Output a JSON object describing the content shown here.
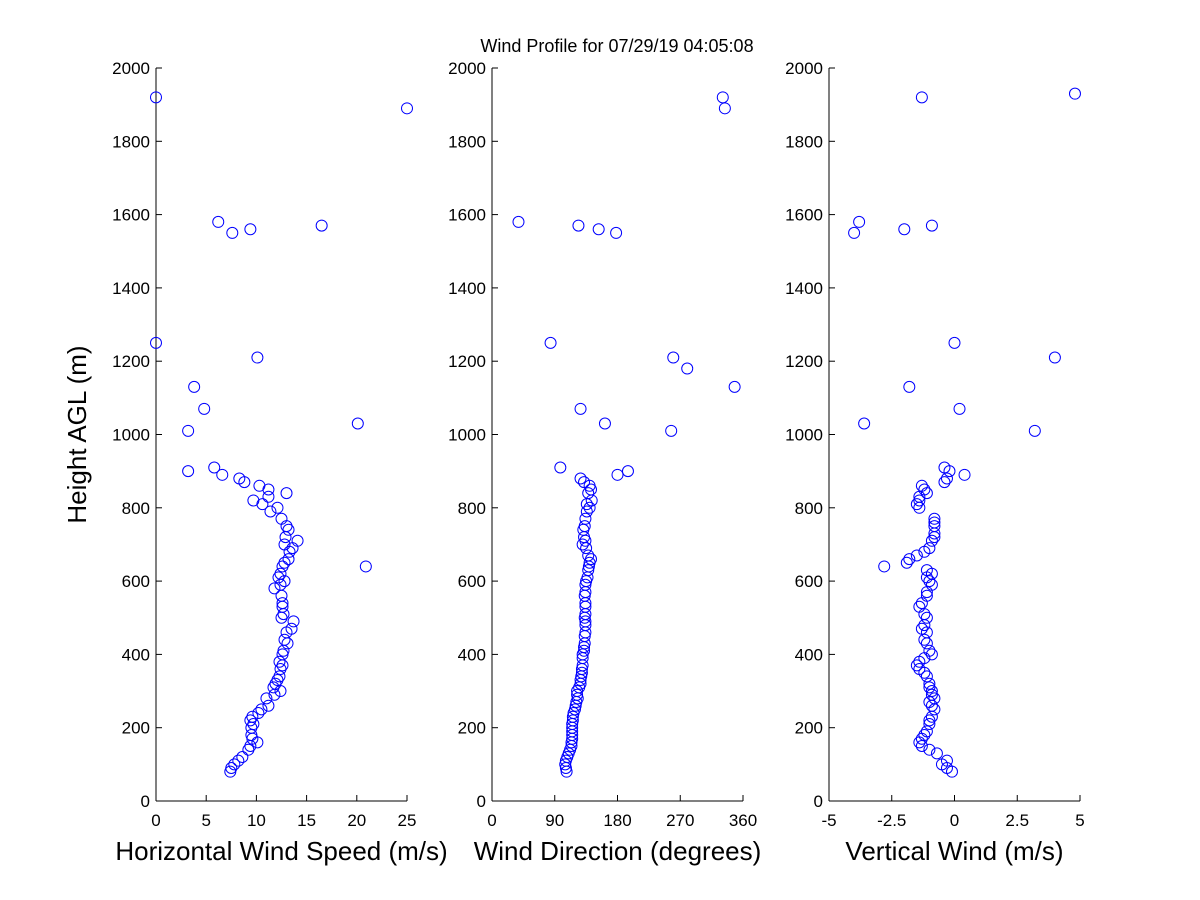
{
  "title": "Wind Profile for  07/29/19 04:05:08",
  "colors": {
    "marker": "#0000ff",
    "axis": "#000000",
    "background": "#ffffff"
  },
  "chart_data": [
    {
      "type": "scatter",
      "xlabel": "Horizontal Wind Speed (m/s)",
      "ylabel": "Height AGL (m)",
      "xlim": [
        0,
        25
      ],
      "ylim": [
        0,
        2000
      ],
      "xticks": [
        0,
        5,
        10,
        15,
        20,
        25
      ],
      "xtick_labels": [
        "0",
        "5",
        "10",
        "15",
        "20",
        "25"
      ],
      "yticks": [
        0,
        200,
        400,
        600,
        800,
        1000,
        1200,
        1400,
        1600,
        1800,
        2000
      ],
      "ytick_labels": [
        "0",
        "200",
        "400",
        "600",
        "800",
        "1000",
        "1200",
        "1400",
        "1600",
        "1800",
        "2000"
      ],
      "points": [
        [
          0,
          1920
        ],
        [
          25,
          1890
        ],
        [
          6.2,
          1580
        ],
        [
          7.6,
          1550
        ],
        [
          9.4,
          1560
        ],
        [
          16.5,
          1570
        ],
        [
          0,
          1250
        ],
        [
          10.1,
          1210
        ],
        [
          3.8,
          1130
        ],
        [
          4.8,
          1070
        ],
        [
          3.2,
          1010
        ],
        [
          20.1,
          1030
        ],
        [
          3.2,
          900
        ],
        [
          5.8,
          910
        ],
        [
          6.6,
          890
        ],
        [
          8.3,
          880
        ],
        [
          8.8,
          870
        ],
        [
          10.3,
          860
        ],
        [
          11.2,
          850
        ],
        [
          13,
          840
        ],
        [
          11.2,
          830
        ],
        [
          9.7,
          820
        ],
        [
          10.6,
          810
        ],
        [
          12.1,
          800
        ],
        [
          11.4,
          790
        ],
        [
          12.5,
          770
        ],
        [
          13,
          750
        ],
        [
          13.2,
          740
        ],
        [
          12.9,
          720
        ],
        [
          14.1,
          710
        ],
        [
          12.8,
          700
        ],
        [
          13.6,
          690
        ],
        [
          13.3,
          680
        ],
        [
          13.2,
          660
        ],
        [
          12.8,
          650
        ],
        [
          12.6,
          640
        ],
        [
          12.4,
          620
        ],
        [
          12.2,
          610
        ],
        [
          12.8,
          600
        ],
        [
          12.4,
          590
        ],
        [
          11.8,
          580
        ],
        [
          12.5,
          560
        ],
        [
          12.6,
          540
        ],
        [
          12.6,
          530
        ],
        [
          12.7,
          510
        ],
        [
          12.5,
          500
        ],
        [
          13.7,
          490
        ],
        [
          13.5,
          470
        ],
        [
          13,
          460
        ],
        [
          12.8,
          440
        ],
        [
          13.1,
          430
        ],
        [
          12.7,
          410
        ],
        [
          12.6,
          400
        ],
        [
          12.3,
          380
        ],
        [
          12.6,
          370
        ],
        [
          12.4,
          360
        ],
        [
          12.3,
          340
        ],
        [
          12.1,
          330
        ],
        [
          11.9,
          320
        ],
        [
          11.7,
          310
        ],
        [
          12.4,
          300
        ],
        [
          11.8,
          290
        ],
        [
          11,
          280
        ],
        [
          11.2,
          260
        ],
        [
          10.5,
          250
        ],
        [
          10.2,
          240
        ],
        [
          9.6,
          230
        ],
        [
          9.4,
          220
        ],
        [
          9.7,
          210
        ],
        [
          9.5,
          200
        ],
        [
          9.5,
          180
        ],
        [
          9.6,
          170
        ],
        [
          10.1,
          160
        ],
        [
          9.4,
          150
        ],
        [
          9.2,
          140
        ],
        [
          8.6,
          120
        ],
        [
          8.2,
          110
        ],
        [
          7.8,
          100
        ],
        [
          7.5,
          90
        ],
        [
          7.4,
          80
        ],
        [
          20.9,
          640
        ]
      ]
    },
    {
      "type": "scatter",
      "xlabel": "Wind Direction (degrees)",
      "xlim": [
        0,
        360
      ],
      "ylim": [
        0,
        2000
      ],
      "xticks": [
        0,
        90,
        180,
        270,
        360
      ],
      "xtick_labels": [
        "0",
        "90",
        "180",
        "270",
        "360"
      ],
      "yticks": [
        0,
        200,
        400,
        600,
        800,
        1000,
        1200,
        1400,
        1600,
        1800,
        2000
      ],
      "ytick_labels": [
        "0",
        "200",
        "400",
        "600",
        "800",
        "1000",
        "1200",
        "1400",
        "1600",
        "1800",
        "2000"
      ],
      "points": [
        [
          331,
          1920
        ],
        [
          334,
          1890
        ],
        [
          38,
          1580
        ],
        [
          124,
          1570
        ],
        [
          153,
          1560
        ],
        [
          178,
          1550
        ],
        [
          84,
          1250
        ],
        [
          260,
          1210
        ],
        [
          280,
          1180
        ],
        [
          348,
          1130
        ],
        [
          127,
          1070
        ],
        [
          162,
          1030
        ],
        [
          257,
          1010
        ],
        [
          98,
          910
        ],
        [
          195,
          900
        ],
        [
          180,
          890
        ],
        [
          127,
          880
        ],
        [
          132,
          870
        ],
        [
          140,
          860
        ],
        [
          142,
          850
        ],
        [
          138,
          840
        ],
        [
          143,
          820
        ],
        [
          136,
          810
        ],
        [
          140,
          800
        ],
        [
          136,
          790
        ],
        [
          134,
          770
        ],
        [
          133,
          750
        ],
        [
          131,
          740
        ],
        [
          132,
          720
        ],
        [
          134,
          710
        ],
        [
          130,
          700
        ],
        [
          135,
          690
        ],
        [
          138,
          670
        ],
        [
          142,
          660
        ],
        [
          140,
          650
        ],
        [
          139,
          640
        ],
        [
          138,
          630
        ],
        [
          137,
          610
        ],
        [
          135,
          600
        ],
        [
          134,
          590
        ],
        [
          134,
          570
        ],
        [
          133,
          560
        ],
        [
          134,
          540
        ],
        [
          134,
          530
        ],
        [
          134,
          510
        ],
        [
          133,
          500
        ],
        [
          134,
          490
        ],
        [
          134,
          480
        ],
        [
          134,
          460
        ],
        [
          133,
          450
        ],
        [
          133,
          430
        ],
        [
          132,
          420
        ],
        [
          132,
          410
        ],
        [
          130,
          400
        ],
        [
          130,
          390
        ],
        [
          130,
          370
        ],
        [
          129,
          360
        ],
        [
          129,
          350
        ],
        [
          128,
          340
        ],
        [
          127,
          330
        ],
        [
          127,
          320
        ],
        [
          125,
          310
        ],
        [
          122,
          300
        ],
        [
          122,
          290
        ],
        [
          123,
          280
        ],
        [
          121,
          270
        ],
        [
          120,
          260
        ],
        [
          119,
          250
        ],
        [
          117,
          240
        ],
        [
          116,
          230
        ],
        [
          116,
          220
        ],
        [
          115,
          210
        ],
        [
          115,
          200
        ],
        [
          115,
          190
        ],
        [
          115,
          180
        ],
        [
          115,
          170
        ],
        [
          114,
          160
        ],
        [
          114,
          150
        ],
        [
          112,
          140
        ],
        [
          110,
          130
        ],
        [
          108,
          120
        ],
        [
          106,
          110
        ],
        [
          105,
          100
        ],
        [
          106,
          90
        ],
        [
          107,
          80
        ]
      ]
    },
    {
      "type": "scatter",
      "xlabel": "Vertical Wind (m/s)",
      "xlim": [
        -5,
        5
      ],
      "ylim": [
        0,
        2000
      ],
      "xticks": [
        -5,
        -2.5,
        0,
        2.5,
        5
      ],
      "xtick_labels": [
        "-5",
        "-2.5",
        "0",
        "2.5",
        "5"
      ],
      "yticks": [
        0,
        200,
        400,
        600,
        800,
        1000,
        1200,
        1400,
        1600,
        1800,
        2000
      ],
      "ytick_labels": [
        "0",
        "200",
        "400",
        "600",
        "800",
        "1000",
        "1200",
        "1400",
        "1600",
        "1800",
        "2000"
      ],
      "points": [
        [
          4.8,
          1930
        ],
        [
          -1.3,
          1920
        ],
        [
          -3.8,
          1580
        ],
        [
          -4,
          1550
        ],
        [
          -2,
          1560
        ],
        [
          -0.9,
          1570
        ],
        [
          0,
          1250
        ],
        [
          4,
          1210
        ],
        [
          -1.8,
          1130
        ],
        [
          0.2,
          1070
        ],
        [
          -3.6,
          1030
        ],
        [
          3.2,
          1010
        ],
        [
          -0.4,
          910
        ],
        [
          -0.2,
          900
        ],
        [
          0.4,
          890
        ],
        [
          -0.3,
          880
        ],
        [
          -0.4,
          870
        ],
        [
          -1.3,
          860
        ],
        [
          -1.2,
          850
        ],
        [
          -1.1,
          840
        ],
        [
          -1.4,
          830
        ],
        [
          -1.4,
          820
        ],
        [
          -1.5,
          810
        ],
        [
          -1.4,
          800
        ],
        [
          -0.8,
          770
        ],
        [
          -0.8,
          760
        ],
        [
          -0.8,
          750
        ],
        [
          -0.8,
          730
        ],
        [
          -0.8,
          720
        ],
        [
          -0.9,
          710
        ],
        [
          -1,
          690
        ],
        [
          -1.2,
          680
        ],
        [
          -1.5,
          670
        ],
        [
          -1.8,
          660
        ],
        [
          -1.9,
          650
        ],
        [
          -2.8,
          640
        ],
        [
          -1.1,
          630
        ],
        [
          -0.9,
          620
        ],
        [
          -1.1,
          610
        ],
        [
          -1,
          600
        ],
        [
          -0.9,
          590
        ],
        [
          -1.1,
          570
        ],
        [
          -1.1,
          560
        ],
        [
          -1.3,
          540
        ],
        [
          -1.4,
          530
        ],
        [
          -1.2,
          510
        ],
        [
          -1.1,
          500
        ],
        [
          -1.2,
          480
        ],
        [
          -1.3,
          470
        ],
        [
          -1.1,
          460
        ],
        [
          -1.2,
          440
        ],
        [
          -1.1,
          430
        ],
        [
          -1,
          410
        ],
        [
          -0.9,
          400
        ],
        [
          -1.2,
          390
        ],
        [
          -1.4,
          380
        ],
        [
          -1.5,
          370
        ],
        [
          -1.4,
          360
        ],
        [
          -1.2,
          350
        ],
        [
          -1.1,
          340
        ],
        [
          -1,
          320
        ],
        [
          -1,
          310
        ],
        [
          -0.9,
          300
        ],
        [
          -0.9,
          290
        ],
        [
          -0.8,
          280
        ],
        [
          -1,
          270
        ],
        [
          -0.9,
          260
        ],
        [
          -0.8,
          250
        ],
        [
          -0.9,
          230
        ],
        [
          -1,
          220
        ],
        [
          -1,
          210
        ],
        [
          -1.1,
          190
        ],
        [
          -1.2,
          180
        ],
        [
          -1.3,
          170
        ],
        [
          -1.4,
          160
        ],
        [
          -1.3,
          150
        ],
        [
          -1,
          140
        ],
        [
          -0.7,
          130
        ],
        [
          -0.3,
          110
        ],
        [
          -0.5,
          100
        ],
        [
          -0.3,
          90
        ],
        [
          -0.1,
          80
        ]
      ]
    }
  ]
}
